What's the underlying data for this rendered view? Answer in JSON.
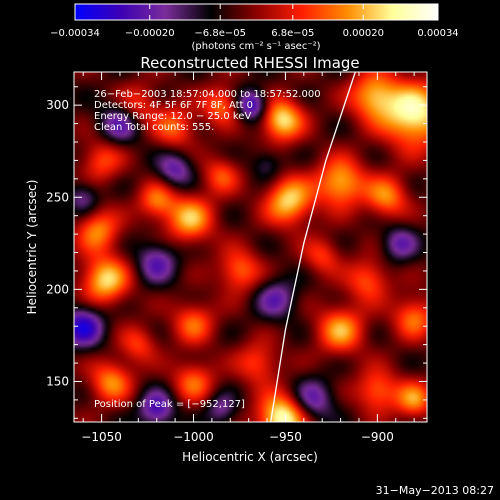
{
  "chart_data": {
    "type": "heatmap",
    "title": "Reconstructed RHESSI Image",
    "xlabel": "Heliocentric X (arcsec)",
    "ylabel": "Heliocentric Y (arcsec)",
    "xlim": [
      -1065,
      -873
    ],
    "ylim": [
      128,
      318
    ],
    "x_ticks": [
      -1050,
      -1000,
      -950,
      -900
    ],
    "x_tick_labels": [
      "−1050",
      "−1000",
      "−950",
      "−900"
    ],
    "y_ticks": [
      150,
      200,
      250,
      300
    ],
    "y_tick_labels": [
      "150",
      "200",
      "250",
      "300"
    ],
    "colorbar": {
      "range": [
        -0.00034,
        0.00034
      ],
      "ticks": [
        -0.00034,
        -0.0002,
        -6.8e-05,
        6.8e-05,
        0.0002,
        0.00034
      ],
      "tick_labels": [
        "−0.00034",
        "−0.00020",
        "−6.8e−05",
        "6.8e−05",
        "0.00020",
        "0.00034"
      ],
      "units_label": "(photons cm⁻² s⁻¹ asec⁻²)",
      "colors": [
        "#0000ff",
        "#3c00b4",
        "#7a2d9a",
        "#000000",
        "#8c0000",
        "#ff1e00",
        "#ff8c00",
        "#ffff9a",
        "#ffffff"
      ]
    },
    "annotations": [
      "26−Feb−2003 18:57:04.000  to 18:57:52.000",
      "Detectors: 4F 5F 6F 7F 8F, Att 0",
      "Energy Range: 12.0 − 25.0 keV",
      "Clean     Total counts: 555."
    ],
    "peak_label": "Position of Peak = [−952,127]",
    "peak": {
      "x": -952,
      "y": 127
    },
    "limb_curve": [
      {
        "x": -958,
        "y": 128
      },
      {
        "x": -950,
        "y": 178
      },
      {
        "x": -940,
        "y": 225
      },
      {
        "x": -928,
        "y": 270
      },
      {
        "x": -912,
        "y": 318
      }
    ],
    "sources": [
      {
        "x": -952,
        "y": 130,
        "amp": 1.0,
        "s": 9
      },
      {
        "x": -880,
        "y": 295,
        "amp": 0.95,
        "s": 12
      },
      {
        "x": -902,
        "y": 305,
        "amp": 0.7,
        "s": 9
      },
      {
        "x": -952,
        "y": 292,
        "amp": 0.85,
        "s": 8
      },
      {
        "x": -985,
        "y": 300,
        "amp": 0.55,
        "s": 7
      },
      {
        "x": -1010,
        "y": 288,
        "amp": 0.5,
        "s": 8
      },
      {
        "x": -1030,
        "y": 300,
        "amp": 0.4,
        "s": 8
      },
      {
        "x": -948,
        "y": 248,
        "amp": 0.8,
        "s": 9
      },
      {
        "x": -920,
        "y": 258,
        "amp": 0.75,
        "s": 9
      },
      {
        "x": -895,
        "y": 250,
        "amp": 0.6,
        "s": 8
      },
      {
        "x": -1002,
        "y": 238,
        "amp": 0.7,
        "s": 9
      },
      {
        "x": -1020,
        "y": 248,
        "amp": 0.55,
        "s": 7
      },
      {
        "x": -1052,
        "y": 232,
        "amp": 0.6,
        "s": 8
      },
      {
        "x": -1050,
        "y": 270,
        "amp": 0.45,
        "s": 8
      },
      {
        "x": -985,
        "y": 262,
        "amp": 0.45,
        "s": 7
      },
      {
        "x": -975,
        "y": 210,
        "amp": 0.55,
        "s": 8
      },
      {
        "x": -1048,
        "y": 205,
        "amp": 0.8,
        "s": 9
      },
      {
        "x": -905,
        "y": 205,
        "amp": 0.5,
        "s": 8
      },
      {
        "x": -930,
        "y": 218,
        "amp": 0.4,
        "s": 7
      },
      {
        "x": -920,
        "y": 178,
        "amp": 0.65,
        "s": 9
      },
      {
        "x": -880,
        "y": 185,
        "amp": 0.55,
        "s": 8
      },
      {
        "x": -1000,
        "y": 182,
        "amp": 0.5,
        "s": 8
      },
      {
        "x": -1030,
        "y": 170,
        "amp": 0.4,
        "s": 7
      },
      {
        "x": -1045,
        "y": 150,
        "amp": 0.6,
        "s": 8
      },
      {
        "x": -1000,
        "y": 150,
        "amp": 0.5,
        "s": 8
      },
      {
        "x": -965,
        "y": 160,
        "amp": 0.45,
        "s": 8
      },
      {
        "x": -900,
        "y": 145,
        "amp": 0.55,
        "s": 8
      },
      {
        "x": -880,
        "y": 140,
        "amp": 0.6,
        "s": 7
      },
      {
        "x": -1060,
        "y": 180,
        "amp": -0.7,
        "s": 8
      },
      {
        "x": -1040,
        "y": 290,
        "amp": -0.5,
        "s": 8
      },
      {
        "x": -968,
        "y": 300,
        "amp": -0.7,
        "s": 6
      },
      {
        "x": -1010,
        "y": 265,
        "amp": -0.5,
        "s": 7
      },
      {
        "x": -960,
        "y": 268,
        "amp": -0.3,
        "s": 6
      },
      {
        "x": -1020,
        "y": 215,
        "amp": -0.5,
        "s": 8
      },
      {
        "x": -955,
        "y": 195,
        "amp": -0.45,
        "s": 8
      },
      {
        "x": -935,
        "y": 140,
        "amp": -0.5,
        "s": 8
      },
      {
        "x": -1020,
        "y": 135,
        "amp": -0.6,
        "s": 7
      },
      {
        "x": -888,
        "y": 225,
        "amp": -0.45,
        "s": 7
      },
      {
        "x": -1060,
        "y": 250,
        "amp": -0.4,
        "s": 6
      },
      {
        "x": -985,
        "y": 135,
        "amp": -0.4,
        "s": 6
      }
    ]
  },
  "footer": {
    "timestamp": "31−May−2013 08:27"
  }
}
